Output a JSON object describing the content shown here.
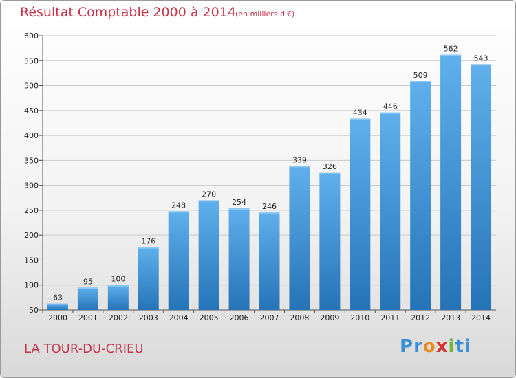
{
  "title": "Résultat Comptable 2000 à 2014",
  "subtitle": "(en milliers d'€)",
  "commune": "LA TOUR-DU-CRIEU",
  "logo": {
    "letters": [
      "P",
      "r",
      "o",
      "x",
      "i",
      "t",
      "i"
    ],
    "colors": [
      "#3a8fd6",
      "#3a8fd6",
      "#e98d1f",
      "#d6322c",
      "#6fb63a",
      "#3a8fd6",
      "#3a8fd6"
    ]
  },
  "colors": {
    "bar_top": "#5fb0ec",
    "bar_bottom": "#2673b8",
    "title": "#c8334a"
  },
  "chart_data": {
    "type": "bar",
    "title": "Résultat Comptable 2000 à 2014",
    "categories": [
      "2000",
      "2001",
      "2002",
      "2003",
      "2004",
      "2005",
      "2006",
      "2007",
      "2008",
      "2009",
      "2010",
      "2011",
      "2012",
      "2013",
      "2014"
    ],
    "values": [
      63,
      95,
      100,
      176,
      248,
      270,
      254,
      246,
      339,
      326,
      434,
      446,
      509,
      562,
      543
    ],
    "ylim": [
      50,
      600
    ],
    "yticks": [
      50,
      100,
      150,
      200,
      250,
      300,
      350,
      400,
      450,
      500,
      550,
      600
    ],
    "grid": true,
    "xlabel": "",
    "ylabel": ""
  }
}
